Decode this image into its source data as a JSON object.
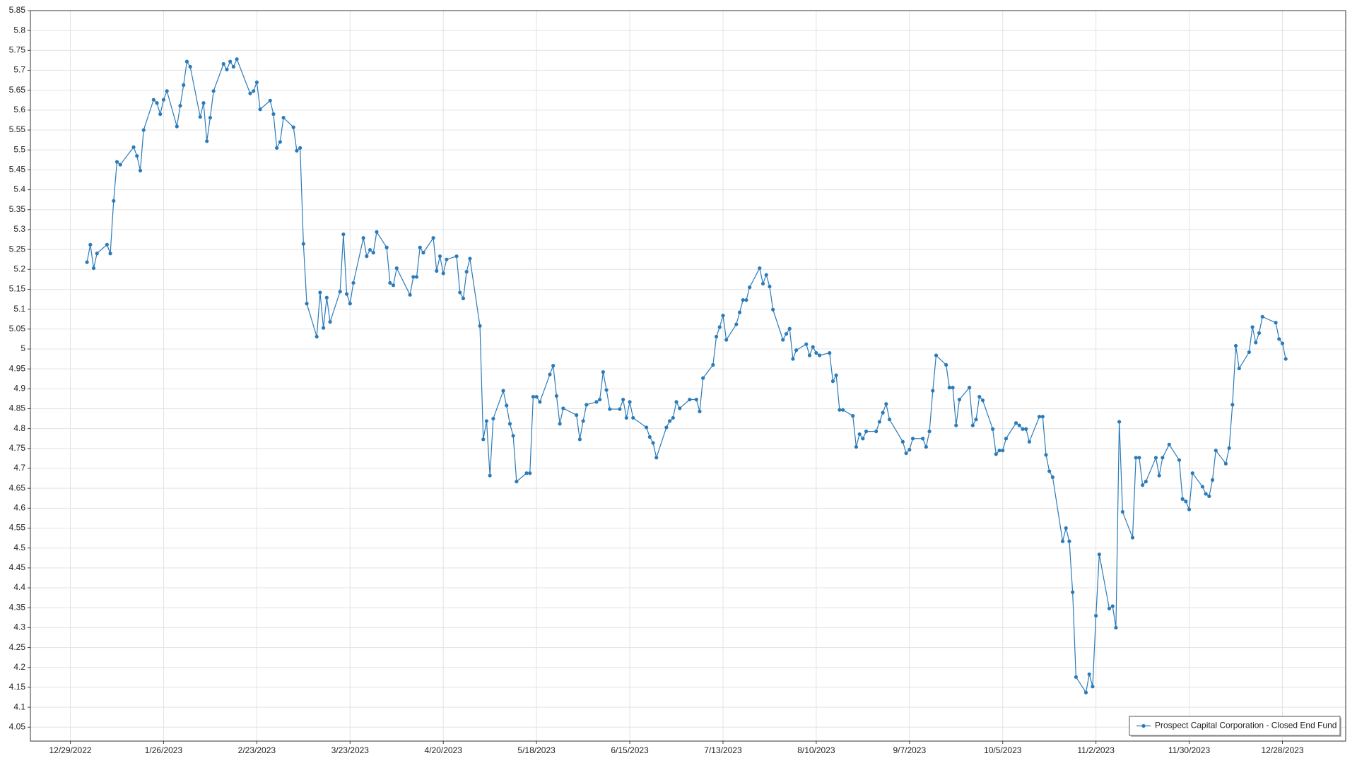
{
  "chart_data": {
    "type": "line",
    "x": [
      "2023-01-03",
      "2023-01-04",
      "2023-01-05",
      "2023-01-06",
      "2023-01-09",
      "2023-01-10",
      "2023-01-11",
      "2023-01-12",
      "2023-01-13",
      "2023-01-17",
      "2023-01-18",
      "2023-01-19",
      "2023-01-20",
      "2023-01-23",
      "2023-01-24",
      "2023-01-25",
      "2023-01-26",
      "2023-01-27",
      "2023-01-30",
      "2023-01-31",
      "2023-02-01",
      "2023-02-02",
      "2023-02-03",
      "2023-02-06",
      "2023-02-07",
      "2023-02-08",
      "2023-02-09",
      "2023-02-10",
      "2023-02-13",
      "2023-02-14",
      "2023-02-15",
      "2023-02-16",
      "2023-02-17",
      "2023-02-21",
      "2023-02-22",
      "2023-02-23",
      "2023-02-24",
      "2023-02-27",
      "2023-02-28",
      "2023-03-01",
      "2023-03-02",
      "2023-03-03",
      "2023-03-06",
      "2023-03-07",
      "2023-03-08",
      "2023-03-09",
      "2023-03-10",
      "2023-03-13",
      "2023-03-14",
      "2023-03-15",
      "2023-03-16",
      "2023-03-17",
      "2023-03-20",
      "2023-03-21",
      "2023-03-22",
      "2023-03-23",
      "2023-03-24",
      "2023-03-27",
      "2023-03-28",
      "2023-03-29",
      "2023-03-30",
      "2023-03-31",
      "2023-04-03",
      "2023-04-04",
      "2023-04-05",
      "2023-04-06",
      "2023-04-10",
      "2023-04-11",
      "2023-04-12",
      "2023-04-13",
      "2023-04-14",
      "2023-04-17",
      "2023-04-18",
      "2023-04-19",
      "2023-04-20",
      "2023-04-21",
      "2023-04-24",
      "2023-04-25",
      "2023-04-26",
      "2023-04-27",
      "2023-04-28",
      "2023-05-01",
      "2023-05-02",
      "2023-05-03",
      "2023-05-04",
      "2023-05-05",
      "2023-05-08",
      "2023-05-09",
      "2023-05-10",
      "2023-05-11",
      "2023-05-12",
      "2023-05-15",
      "2023-05-16",
      "2023-05-17",
      "2023-05-18",
      "2023-05-19",
      "2023-05-22",
      "2023-05-23",
      "2023-05-24",
      "2023-05-25",
      "2023-05-26",
      "2023-05-30",
      "2023-05-31",
      "2023-06-01",
      "2023-06-02",
      "2023-06-05",
      "2023-06-06",
      "2023-06-07",
      "2023-06-08",
      "2023-06-09",
      "2023-06-12",
      "2023-06-13",
      "2023-06-14",
      "2023-06-15",
      "2023-06-16",
      "2023-06-20",
      "2023-06-21",
      "2023-06-22",
      "2023-06-23",
      "2023-06-26",
      "2023-06-27",
      "2023-06-28",
      "2023-06-29",
      "2023-06-30",
      "2023-07-03",
      "2023-07-05",
      "2023-07-06",
      "2023-07-07",
      "2023-07-10",
      "2023-07-11",
      "2023-07-12",
      "2023-07-13",
      "2023-07-14",
      "2023-07-17",
      "2023-07-18",
      "2023-07-19",
      "2023-07-20",
      "2023-07-21",
      "2023-07-24",
      "2023-07-25",
      "2023-07-26",
      "2023-07-27",
      "2023-07-28",
      "2023-07-31",
      "2023-08-01",
      "2023-08-02",
      "2023-08-03",
      "2023-08-04",
      "2023-08-07",
      "2023-08-08",
      "2023-08-09",
      "2023-08-10",
      "2023-08-11",
      "2023-08-14",
      "2023-08-15",
      "2023-08-16",
      "2023-08-17",
      "2023-08-18",
      "2023-08-21",
      "2023-08-22",
      "2023-08-23",
      "2023-08-24",
      "2023-08-25",
      "2023-08-28",
      "2023-08-29",
      "2023-08-30",
      "2023-08-31",
      "2023-09-01",
      "2023-09-05",
      "2023-09-06",
      "2023-09-07",
      "2023-09-08",
      "2023-09-11",
      "2023-09-12",
      "2023-09-13",
      "2023-09-14",
      "2023-09-15",
      "2023-09-18",
      "2023-09-19",
      "2023-09-20",
      "2023-09-21",
      "2023-09-22",
      "2023-09-25",
      "2023-09-26",
      "2023-09-27",
      "2023-09-28",
      "2023-09-29",
      "2023-10-02",
      "2023-10-03",
      "2023-10-04",
      "2023-10-05",
      "2023-10-06",
      "2023-10-09",
      "2023-10-10",
      "2023-10-11",
      "2023-10-12",
      "2023-10-13",
      "2023-10-16",
      "2023-10-17",
      "2023-10-18",
      "2023-10-19",
      "2023-10-20",
      "2023-10-23",
      "2023-10-24",
      "2023-10-25",
      "2023-10-26",
      "2023-10-27",
      "2023-10-30",
      "2023-10-31",
      "2023-11-01",
      "2023-11-02",
      "2023-11-03",
      "2023-11-06",
      "2023-11-07",
      "2023-11-08",
      "2023-11-09",
      "2023-11-10",
      "2023-11-13",
      "2023-11-14",
      "2023-11-15",
      "2023-11-16",
      "2023-11-17",
      "2023-11-20",
      "2023-11-21",
      "2023-11-22",
      "2023-11-24",
      "2023-11-27",
      "2023-11-28",
      "2023-11-29",
      "2023-11-30",
      "2023-12-01",
      "2023-12-04",
      "2023-12-05",
      "2023-12-06",
      "2023-12-07",
      "2023-12-08",
      "2023-12-11",
      "2023-12-12",
      "2023-12-13",
      "2023-12-14",
      "2023-12-15",
      "2023-12-18",
      "2023-12-19",
      "2023-12-20",
      "2023-12-21",
      "2023-12-22",
      "2023-12-26",
      "2023-12-27",
      "2023-12-28",
      "2023-12-29"
    ],
    "series": [
      {
        "name": "Prospect Capital Corporation - Closed End Fund",
        "color": "#2b7bb9",
        "values": [
          5.218,
          5.262,
          5.203,
          5.24,
          5.262,
          5.24,
          5.372,
          5.47,
          5.463,
          5.507,
          5.485,
          5.448,
          5.55,
          5.626,
          5.618,
          5.59,
          5.626,
          5.648,
          5.559,
          5.611,
          5.663,
          5.722,
          5.709,
          5.583,
          5.618,
          5.522,
          5.581,
          5.648,
          5.716,
          5.702,
          5.722,
          5.709,
          5.728,
          5.642,
          5.648,
          5.67,
          5.602,
          5.624,
          5.59,
          5.505,
          5.52,
          5.581,
          5.557,
          5.498,
          5.505,
          5.264,
          5.114,
          5.031,
          5.142,
          5.053,
          5.129,
          5.068,
          5.144,
          5.288,
          5.138,
          5.114,
          5.166,
          5.279,
          5.233,
          5.249,
          5.242,
          5.294,
          5.255,
          5.166,
          5.16,
          5.203,
          5.136,
          5.181,
          5.181,
          5.255,
          5.242,
          5.279,
          5.196,
          5.233,
          5.19,
          5.225,
          5.233,
          5.142,
          5.127,
          5.194,
          5.227,
          5.058,
          4.773,
          4.819,
          4.682,
          4.825,
          4.895,
          4.858,
          4.812,
          4.782,
          4.667,
          4.688,
          4.688,
          4.88,
          4.88,
          4.867,
          4.936,
          4.958,
          4.882,
          4.812,
          4.851,
          4.834,
          4.773,
          4.819,
          4.86,
          4.867,
          4.873,
          4.942,
          4.897,
          4.849,
          4.849,
          4.873,
          4.827,
          4.867,
          4.827,
          4.803,
          4.779,
          4.764,
          4.727,
          4.803,
          4.819,
          4.827,
          4.867,
          4.851,
          4.873,
          4.873,
          4.843,
          4.927,
          4.96,
          5.031,
          5.055,
          5.084,
          5.023,
          5.062,
          5.092,
          5.123,
          5.123,
          5.155,
          5.203,
          5.164,
          5.186,
          5.157,
          5.099,
          5.023,
          5.038,
          5.051,
          4.975,
          4.997,
          5.012,
          4.984,
          5.005,
          4.99,
          4.984,
          4.99,
          4.919,
          4.934,
          4.847,
          4.847,
          4.832,
          4.754,
          4.786,
          4.775,
          4.793,
          4.793,
          4.817,
          4.84,
          4.862,
          4.823,
          4.767,
          4.738,
          4.747,
          4.775,
          4.775,
          4.754,
          4.793,
          4.895,
          4.984,
          4.96,
          4.903,
          4.903,
          4.808,
          4.873,
          4.903,
          4.808,
          4.823,
          4.88,
          4.871,
          4.799,
          4.736,
          4.745,
          4.745,
          4.775,
          4.814,
          4.808,
          4.799,
          4.799,
          4.767,
          4.83,
          4.83,
          4.734,
          4.693,
          4.678,
          4.517,
          4.55,
          4.517,
          4.389,
          4.176,
          4.137,
          4.183,
          4.152,
          4.33,
          4.484,
          4.348,
          4.354,
          4.3,
          4.817,
          4.591,
          4.526,
          4.727,
          4.727,
          4.658,
          4.667,
          4.727,
          4.682,
          4.727,
          4.76,
          4.721,
          4.623,
          4.617,
          4.597,
          4.688,
          4.654,
          4.636,
          4.63,
          4.671,
          4.745,
          4.712,
          4.751,
          4.86,
          5.008,
          4.951,
          4.992,
          5.055,
          5.016,
          5.04,
          5.081,
          5.066,
          5.025,
          5.014,
          4.975
        ]
      }
    ],
    "xlim": [
      "2022-12-17",
      "2024-01-16"
    ],
    "xticks": [
      {
        "value": "2022-12-29",
        "label": "12/29/2022"
      },
      {
        "value": "2023-01-26",
        "label": "1/26/2023"
      },
      {
        "value": "2023-02-23",
        "label": "2/23/2023"
      },
      {
        "value": "2023-03-23",
        "label": "3/23/2023"
      },
      {
        "value": "2023-04-20",
        "label": "4/20/2023"
      },
      {
        "value": "2023-05-18",
        "label": "5/18/2023"
      },
      {
        "value": "2023-06-15",
        "label": "6/15/2023"
      },
      {
        "value": "2023-07-13",
        "label": "7/13/2023"
      },
      {
        "value": "2023-08-10",
        "label": "8/10/2023"
      },
      {
        "value": "2023-09-07",
        "label": "9/7/2023"
      },
      {
        "value": "2023-10-05",
        "label": "10/5/2023"
      },
      {
        "value": "2023-11-02",
        "label": "11/2/2023"
      },
      {
        "value": "2023-11-30",
        "label": "11/30/2023"
      },
      {
        "value": "2023-12-28",
        "label": "12/28/2023"
      }
    ],
    "ylim": [
      4.015,
      5.85
    ],
    "yticks": [
      4.05,
      4.1,
      4.15,
      4.2,
      4.25,
      4.3,
      4.35,
      4.4,
      4.45,
      4.5,
      4.55,
      4.6,
      4.65,
      4.7,
      4.75,
      4.8,
      4.85,
      4.9,
      4.95,
      5,
      5.05,
      5.1,
      5.15,
      5.2,
      5.25,
      5.3,
      5.35,
      5.4,
      5.45,
      5.5,
      5.55,
      5.6,
      5.65,
      5.7,
      5.75,
      5.8,
      5.85
    ],
    "grid": true,
    "legend": "bottom-right"
  }
}
